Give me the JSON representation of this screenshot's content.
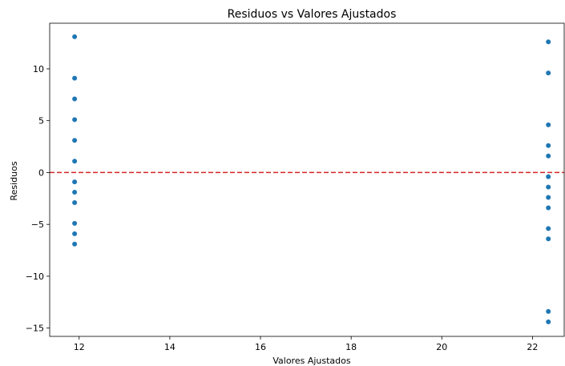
{
  "chart_data": {
    "type": "scatter",
    "title": "Residuos vs Valores Ajustados",
    "xlabel": "Valores Ajustados",
    "ylabel": "Residuos",
    "xlim": [
      11.35,
      22.7
    ],
    "ylim": [
      -15.8,
      14.4
    ],
    "xticks": [
      12,
      14,
      16,
      18,
      20,
      22
    ],
    "yticks": [
      -15,
      -10,
      -5,
      0,
      5,
      10
    ],
    "ytick_labels": [
      "−15",
      "−10",
      "−5",
      "0",
      "5",
      "10"
    ],
    "grid": false,
    "point_color": "#1f77b4",
    "reference_line": {
      "y": 0,
      "color": "#d62728",
      "style": "dashed"
    },
    "series": [
      {
        "x": [
          11.9,
          11.9,
          11.9,
          11.9,
          11.9,
          11.9,
          11.9,
          11.9,
          11.9,
          11.9,
          11.9,
          11.9,
          22.35,
          22.35,
          22.35,
          22.35,
          22.35,
          22.35,
          22.35,
          22.35,
          22.35,
          22.35,
          22.35,
          22.35,
          22.35,
          22.35
        ],
        "y": [
          13.1,
          9.1,
          7.1,
          5.1,
          3.1,
          1.1,
          -0.9,
          -1.9,
          -2.9,
          -4.9,
          -5.9,
          -6.9,
          12.6,
          9.6,
          4.6,
          2.6,
          1.6,
          -0.4,
          -1.4,
          -2.4,
          -3.4,
          -5.4,
          -6.4,
          -13.4,
          -14.4,
          -14.4
        ]
      }
    ]
  }
}
